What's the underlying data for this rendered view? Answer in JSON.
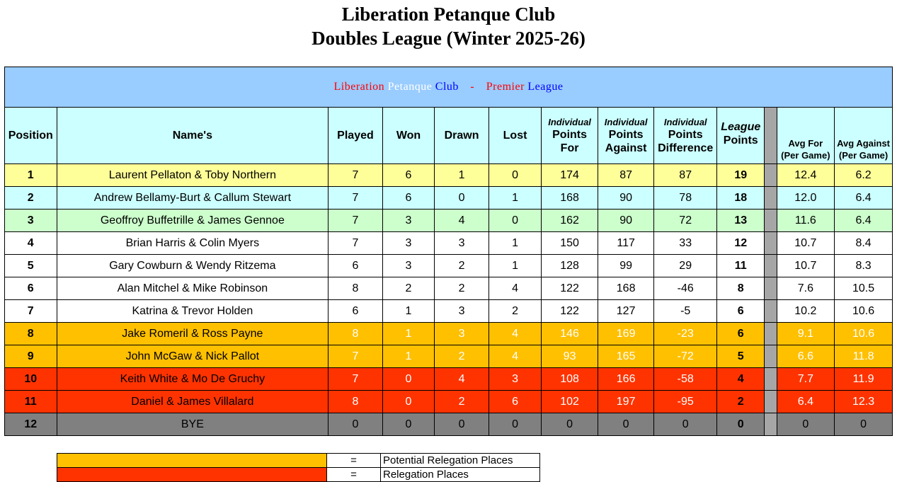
{
  "title_line1": "Liberation Petanque Club",
  "title_line2": "Doubles League (Winter 2025-26)",
  "banner": {
    "word1": "Liberation",
    "word2": "Petanque",
    "word3": "Club",
    "separator": "-",
    "word4": "Premier",
    "word5": "League"
  },
  "headers": {
    "position": "Position",
    "name": "Name's",
    "played": "Played",
    "won": "Won",
    "drawn": "Drawn",
    "lost": "Lost",
    "pf_top": "Individual",
    "pf_line1": "Points",
    "pf_line2": "For",
    "pa_top": "Individual",
    "pa_line1": "Points",
    "pa_line2": "Against",
    "pd_top": "Individual",
    "pd_line1": "Points",
    "pd_line2": "Difference",
    "lp_top": "League",
    "lp_line1": "Points",
    "avg_for_line1": "Avg For",
    "avg_for_line2": "(Per Game)",
    "avg_against_line1": "Avg Against",
    "avg_against_line2": "(Per Game)"
  },
  "rows": [
    {
      "pos": "1",
      "name": "Laurent Pellaton & Toby Northern",
      "played": "7",
      "won": "6",
      "drawn": "1",
      "lost": "0",
      "pf": "174",
      "pa": "87",
      "pd": "87",
      "pts": "19",
      "avg_for": "12.4",
      "avg_against": "6.2"
    },
    {
      "pos": "2",
      "name": "Andrew Bellamy-Burt & Callum Stewart",
      "played": "7",
      "won": "6",
      "drawn": "0",
      "lost": "1",
      "pf": "168",
      "pa": "90",
      "pd": "78",
      "pts": "18",
      "avg_for": "12.0",
      "avg_against": "6.4"
    },
    {
      "pos": "3",
      "name": "Geoffroy Buffetrille & James Gennoe",
      "played": "7",
      "won": "3",
      "drawn": "4",
      "lost": "0",
      "pf": "162",
      "pa": "90",
      "pd": "72",
      "pts": "13",
      "avg_for": "11.6",
      "avg_against": "6.4"
    },
    {
      "pos": "4",
      "name": "Brian Harris & Colin Myers",
      "played": "7",
      "won": "3",
      "drawn": "3",
      "lost": "1",
      "pf": "150",
      "pa": "117",
      "pd": "33",
      "pts": "12",
      "avg_for": "10.7",
      "avg_against": "8.4"
    },
    {
      "pos": "5",
      "name": "Gary Cowburn & Wendy Ritzema",
      "played": "6",
      "won": "3",
      "drawn": "2",
      "lost": "1",
      "pf": "128",
      "pa": "99",
      "pd": "29",
      "pts": "11",
      "avg_for": "10.7",
      "avg_against": "8.3"
    },
    {
      "pos": "6",
      "name": "Alan Mitchel & Mike Robinson",
      "played": "8",
      "won": "2",
      "drawn": "2",
      "lost": "4",
      "pf": "122",
      "pa": "168",
      "pd": "-46",
      "pts": "8",
      "avg_for": "7.6",
      "avg_against": "10.5"
    },
    {
      "pos": "7",
      "name": "Katrina & Trevor Holden",
      "played": "6",
      "won": "1",
      "drawn": "3",
      "lost": "2",
      "pf": "122",
      "pa": "127",
      "pd": "-5",
      "pts": "6",
      "avg_for": "10.2",
      "avg_against": "10.6"
    },
    {
      "pos": "8",
      "name": "Jake Romeril & Ross Payne",
      "played": "8",
      "won": "1",
      "drawn": "3",
      "lost": "4",
      "pf": "146",
      "pa": "169",
      "pd": "-23",
      "pts": "6",
      "avg_for": "9.1",
      "avg_against": "10.6"
    },
    {
      "pos": "9",
      "name": "John McGaw & Nick Pallot",
      "played": "7",
      "won": "1",
      "drawn": "2",
      "lost": "4",
      "pf": "93",
      "pa": "165",
      "pd": "-72",
      "pts": "5",
      "avg_for": "6.6",
      "avg_against": "11.8"
    },
    {
      "pos": "10",
      "name": "Keith White & Mo De Gruchy",
      "played": "7",
      "won": "0",
      "drawn": "4",
      "lost": "3",
      "pf": "108",
      "pa": "166",
      "pd": "-58",
      "pts": "4",
      "avg_for": "7.7",
      "avg_against": "11.9"
    },
    {
      "pos": "11",
      "name": "Daniel & James Villalard",
      "played": "8",
      "won": "0",
      "drawn": "2",
      "lost": "6",
      "pf": "102",
      "pa": "197",
      "pd": "-95",
      "pts": "2",
      "avg_for": "6.4",
      "avg_against": "12.3"
    },
    {
      "pos": "12",
      "name": "BYE",
      "played": "0",
      "won": "0",
      "drawn": "0",
      "lost": "0",
      "pf": "0",
      "pa": "0",
      "pd": "0",
      "pts": "0",
      "avg_for": "0",
      "avg_against": "0"
    }
  ],
  "key": [
    {
      "equals": "=",
      "label": "Potential Relegation Places"
    },
    {
      "equals": "=",
      "label": "Relegation Places"
    }
  ],
  "colors": {
    "banner_bg": "#99ccff",
    "header_bg": "#ccffff",
    "row1": "#ffff99",
    "row2": "#ccffff",
    "row3": "#ccffcc",
    "potential_relegation": "#ffc000",
    "relegation": "#ff3300",
    "bye": "#808080"
  }
}
